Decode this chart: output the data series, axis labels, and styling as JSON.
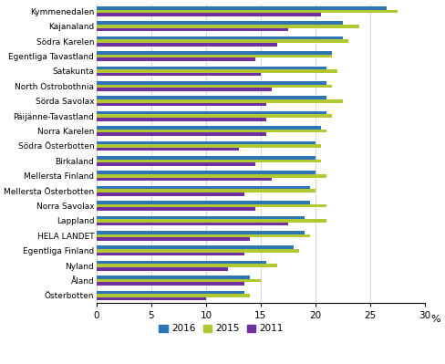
{
  "categories": [
    "Kymmenedalen",
    "Kajanaland",
    "Södra Karelen",
    "Egentliga Tavastland",
    "Satakunta",
    "North Ostrobothnia",
    "Sörda Savolax",
    "Päijänne-Tavastland",
    "Norra Karelen",
    "Södra Österbotten",
    "Birkaland",
    "Mellersta Finland",
    "Mellersta Österbotten",
    "Norra Savolax",
    "Lappland",
    "HELA LANDET",
    "Egentliga Finland",
    "Nyland",
    "Åland",
    "Österbotten"
  ],
  "data_2016": [
    26.5,
    22.5,
    22.5,
    21.5,
    21.0,
    21.0,
    21.0,
    21.0,
    20.5,
    20.0,
    20.0,
    20.0,
    19.5,
    19.5,
    19.0,
    19.0,
    18.0,
    15.5,
    14.0,
    13.5
  ],
  "data_2015": [
    27.5,
    24.0,
    23.0,
    21.5,
    22.0,
    21.5,
    22.5,
    21.5,
    21.0,
    20.5,
    20.5,
    21.0,
    20.0,
    21.0,
    21.0,
    19.5,
    18.5,
    16.5,
    15.0,
    14.0
  ],
  "data_2011": [
    20.5,
    17.5,
    16.5,
    14.5,
    15.0,
    16.0,
    15.5,
    15.5,
    15.5,
    13.0,
    14.5,
    16.0,
    13.5,
    14.5,
    17.5,
    14.0,
    13.5,
    12.0,
    13.5,
    10.0
  ],
  "color_2016": "#2E75B6",
  "color_2015": "#B2C832",
  "color_2011": "#7030A0",
  "xlim": [
    0,
    30
  ],
  "xticks": [
    0,
    5,
    10,
    15,
    20,
    25,
    30
  ],
  "xlabel": "%",
  "legend_labels": [
    "2016",
    "2015",
    "2011"
  ],
  "background_color": "#ffffff",
  "grid_color": "#d0d0d0"
}
